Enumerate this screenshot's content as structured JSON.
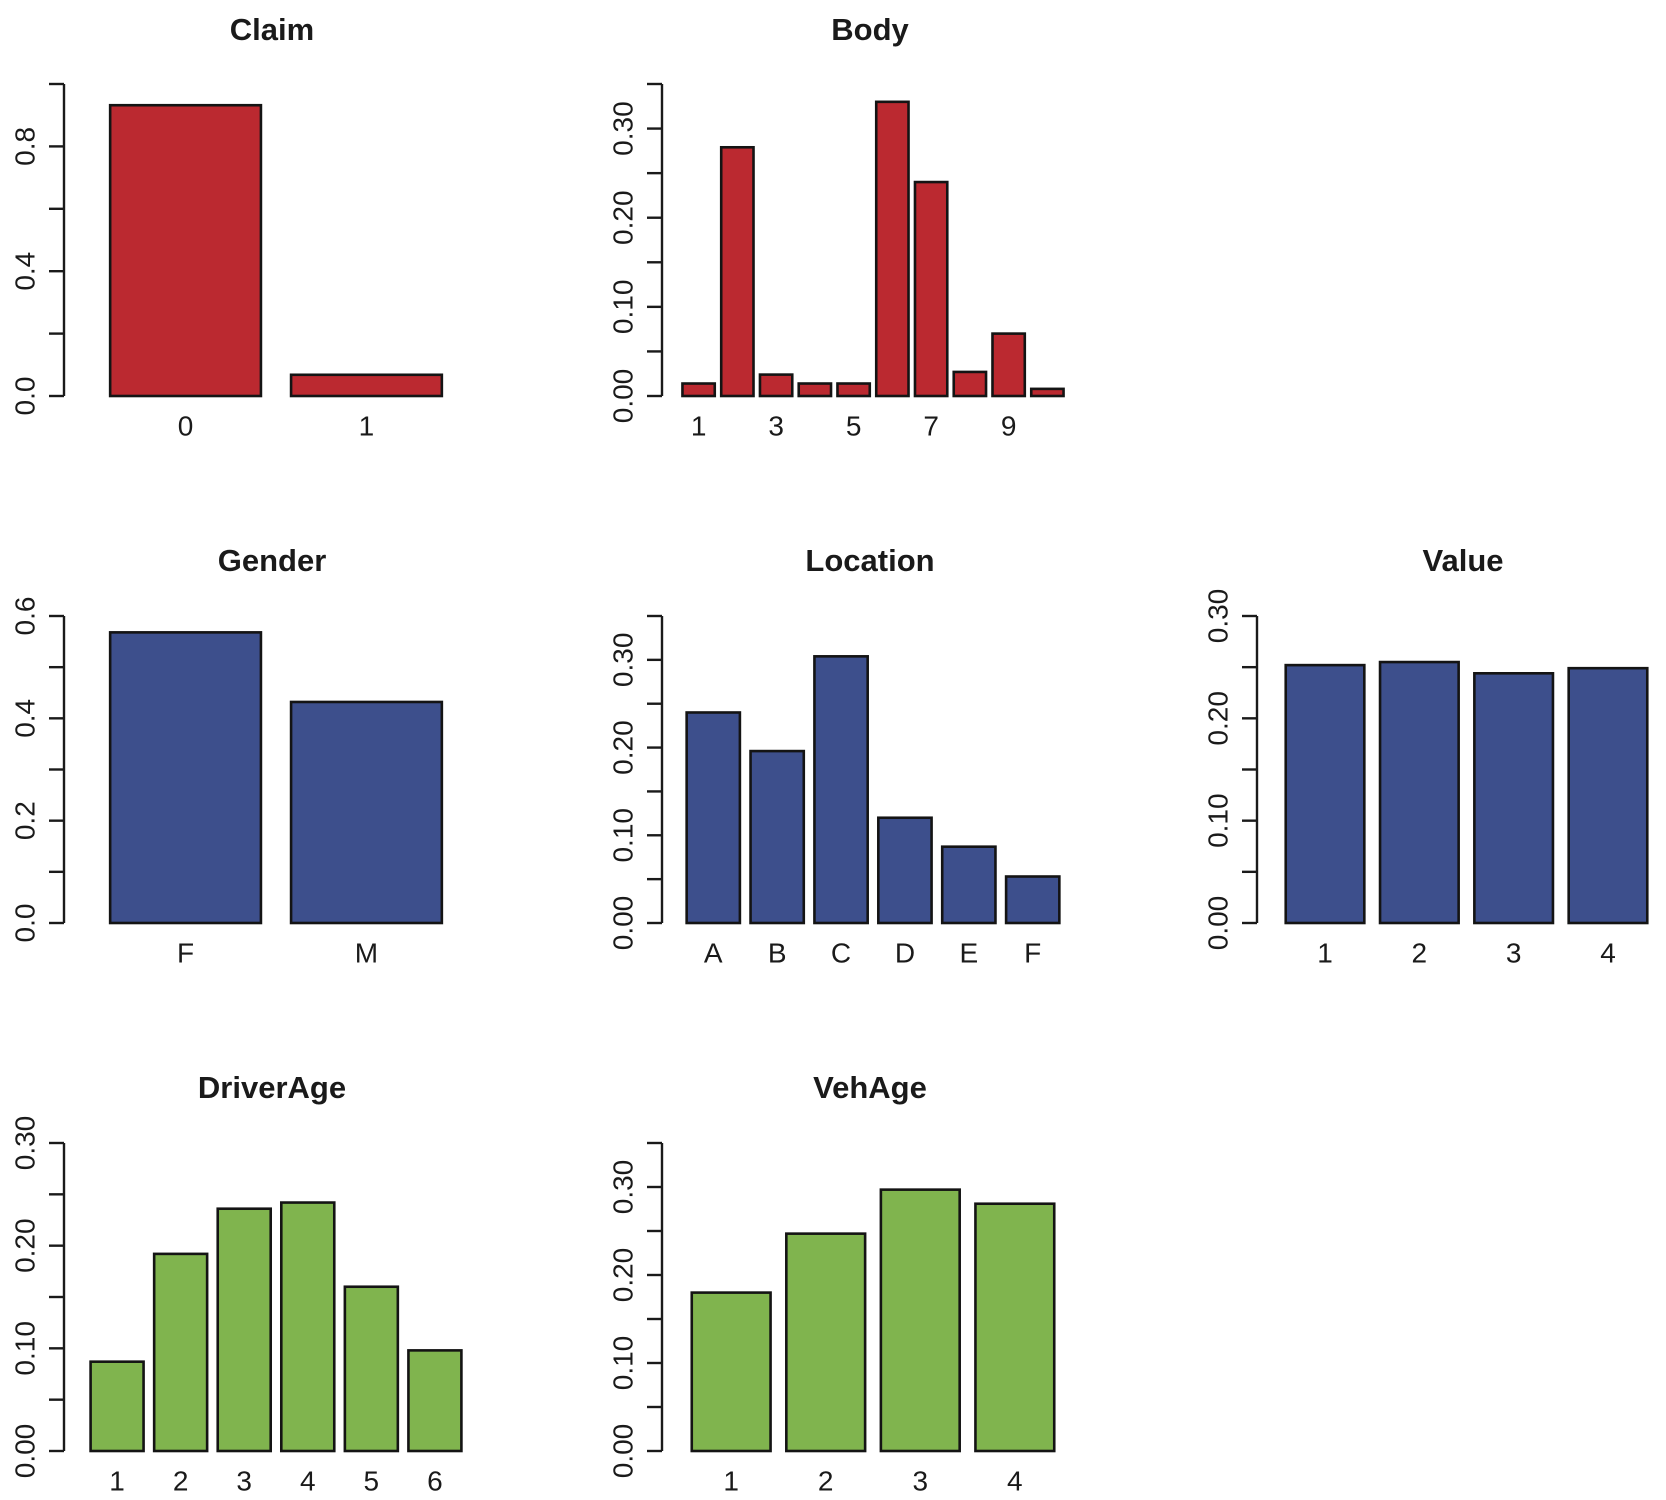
{
  "chart_data": [
    {
      "type": "bar",
      "title": "Claim",
      "categories": [
        "0",
        "1"
      ],
      "x_tick_labels": [
        "0",
        "1"
      ],
      "values": [
        0.932,
        0.068
      ],
      "ylim": [
        0,
        1.0
      ],
      "y_ticks": [
        0.0,
        0.2,
        0.4,
        0.6,
        0.8,
        1.0
      ],
      "y_tick_labels": [
        "0.0",
        "",
        "0.4",
        "",
        "0.8",
        ""
      ],
      "color": "#bb2930",
      "xlabel": "",
      "ylabel": "",
      "grid": false
    },
    {
      "type": "bar",
      "title": "Body",
      "categories": [
        "1",
        "2",
        "3",
        "4",
        "5",
        "6",
        "7",
        "8",
        "9",
        "10"
      ],
      "x_tick_labels": [
        "1",
        "",
        "3",
        "",
        "5",
        "",
        "7",
        "",
        "9",
        ""
      ],
      "values": [
        0.014,
        0.279,
        0.024,
        0.014,
        0.014,
        0.33,
        0.24,
        0.027,
        0.07,
        0.008
      ],
      "ylim": [
        0,
        0.35
      ],
      "y_ticks": [
        0.0,
        0.05,
        0.1,
        0.15,
        0.2,
        0.25,
        0.3,
        0.35
      ],
      "y_tick_labels": [
        "0.00",
        "",
        "0.10",
        "",
        "0.20",
        "",
        "0.30",
        ""
      ],
      "color": "#bb2930",
      "xlabel": "",
      "ylabel": "",
      "grid": false
    },
    {
      "type": "bar",
      "title": "Gender",
      "categories": [
        "F",
        "M"
      ],
      "x_tick_labels": [
        "F",
        "M"
      ],
      "values": [
        0.568,
        0.432
      ],
      "ylim": [
        0,
        0.6
      ],
      "y_ticks": [
        0.0,
        0.1,
        0.2,
        0.3,
        0.4,
        0.5,
        0.6
      ],
      "y_tick_labels": [
        "0.0",
        "",
        "0.2",
        "",
        "0.4",
        "",
        "0.6"
      ],
      "color": "#3d4f8c",
      "xlabel": "",
      "ylabel": "",
      "grid": false
    },
    {
      "type": "bar",
      "title": "Location",
      "categories": [
        "A",
        "B",
        "C",
        "D",
        "E",
        "F"
      ],
      "x_tick_labels": [
        "A",
        "B",
        "C",
        "D",
        "E",
        "F"
      ],
      "values": [
        0.24,
        0.196,
        0.304,
        0.12,
        0.087,
        0.053
      ],
      "ylim": [
        0,
        0.35
      ],
      "y_ticks": [
        0.0,
        0.05,
        0.1,
        0.15,
        0.2,
        0.25,
        0.3,
        0.35
      ],
      "y_tick_labels": [
        "0.00",
        "",
        "0.10",
        "",
        "0.20",
        "",
        "0.30",
        ""
      ],
      "color": "#3d4f8c",
      "xlabel": "",
      "ylabel": "",
      "grid": false
    },
    {
      "type": "bar",
      "title": "Value",
      "categories": [
        "1",
        "2",
        "3",
        "4"
      ],
      "x_tick_labels": [
        "1",
        "2",
        "3",
        "4"
      ],
      "values": [
        0.252,
        0.255,
        0.244,
        0.249
      ],
      "ylim": [
        0,
        0.3
      ],
      "y_ticks": [
        0.0,
        0.05,
        0.1,
        0.15,
        0.2,
        0.25,
        0.3
      ],
      "y_tick_labels": [
        "0.00",
        "",
        "0.10",
        "",
        "0.20",
        "",
        "0.30"
      ],
      "color": "#3d4f8c",
      "xlabel": "",
      "ylabel": "",
      "grid": false
    },
    {
      "type": "bar",
      "title": "DriverAge",
      "categories": [
        "1",
        "2",
        "3",
        "4",
        "5",
        "6"
      ],
      "x_tick_labels": [
        "1",
        "2",
        "3",
        "4",
        "5",
        "6"
      ],
      "values": [
        0.087,
        0.192,
        0.236,
        0.242,
        0.16,
        0.098
      ],
      "ylim": [
        0,
        0.3
      ],
      "y_ticks": [
        0.0,
        0.05,
        0.1,
        0.15,
        0.2,
        0.25,
        0.3
      ],
      "y_tick_labels": [
        "0.00",
        "",
        "0.10",
        "",
        "0.20",
        "",
        "0.30"
      ],
      "color": "#80b44e",
      "xlabel": "",
      "ylabel": "",
      "grid": false
    },
    {
      "type": "bar",
      "title": "VehAge",
      "categories": [
        "1",
        "2",
        "3",
        "4"
      ],
      "x_tick_labels": [
        "1",
        "2",
        "3",
        "4"
      ],
      "values": [
        0.18,
        0.247,
        0.297,
        0.281
      ],
      "ylim": [
        0,
        0.35
      ],
      "y_ticks": [
        0.0,
        0.05,
        0.1,
        0.15,
        0.2,
        0.25,
        0.3,
        0.35
      ],
      "y_tick_labels": [
        "0.00",
        "",
        "0.10",
        "",
        "0.20",
        "",
        "0.30",
        ""
      ],
      "color": "#80b44e",
      "xlabel": "",
      "ylabel": "",
      "grid": false
    }
  ]
}
